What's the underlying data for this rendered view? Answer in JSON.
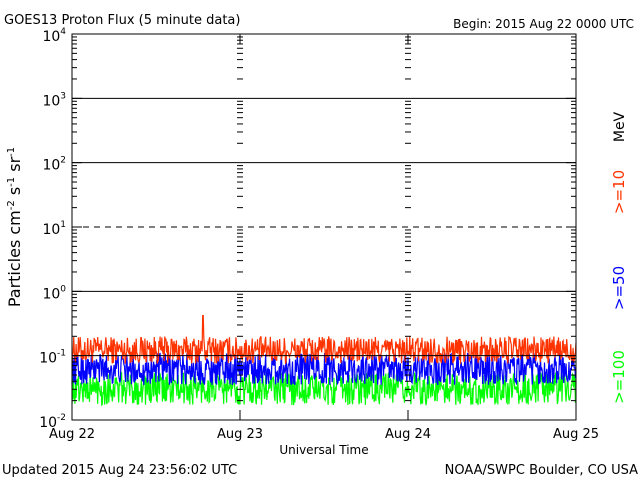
{
  "chart_data": {
    "type": "line",
    "title": "GOES13 Proton Flux (5 minute data)",
    "begin_label": "Begin: 2015 Aug 22 0000 UTC",
    "xlabel": "Universal Time",
    "ylabel_parts": [
      "Particles cm",
      "-2",
      "s",
      "-1",
      "sr",
      "-1"
    ],
    "units_label": "MeV",
    "footer_left": "Updated 2015 Aug 24 23:56:02 UTC",
    "footer_right": "NOAA/SWPC Boulder, CO USA",
    "y_scale": "log",
    "ylim": [
      0.01,
      10000
    ],
    "y_ticks": [
      {
        "base": "10",
        "exp": "-2"
      },
      {
        "base": "10",
        "exp": "-1"
      },
      {
        "base": "10",
        "exp": "0"
      },
      {
        "base": "10",
        "exp": "1"
      },
      {
        "base": "10",
        "exp": "2"
      },
      {
        "base": "10",
        "exp": "3"
      },
      {
        "base": "10",
        "exp": "4"
      }
    ],
    "x_range_days": [
      0,
      3
    ],
    "x_ticks": [
      "Aug 22",
      "Aug 23",
      "Aug 24",
      "Aug 25"
    ],
    "threshold_lines": [
      {
        "value": 0.1,
        "style": "solid"
      },
      {
        "value": 1,
        "style": "solid"
      },
      {
        "value": 10,
        "style": "dashed"
      },
      {
        "value": 100,
        "style": "solid"
      },
      {
        "value": 1000,
        "style": "solid"
      }
    ],
    "series": [
      {
        "name": ">=10",
        "color": "#ff3300",
        "low": 0.075,
        "high": 0.2,
        "spike": {
          "day": 0.78,
          "value": 0.42
        }
      },
      {
        "name": ">=50",
        "color": "#0000ff",
        "low": 0.035,
        "high": 0.11
      },
      {
        "name": ">=100",
        "color": "#00ff00",
        "low": 0.017,
        "high": 0.055
      }
    ]
  }
}
